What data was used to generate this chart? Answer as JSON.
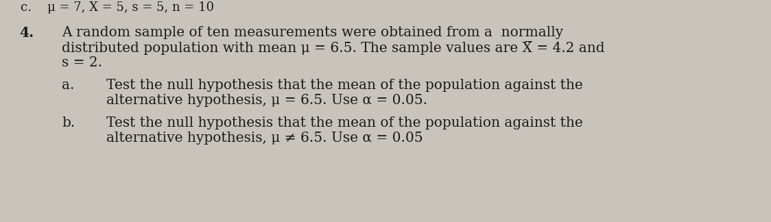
{
  "background_color": "#c8c4bc",
  "text_color": "#1a1a1a",
  "fig_width": 11.24,
  "fig_height": 3.24,
  "dpi": 100,
  "header": "c.    μ = 7, X = 5, s = 5, n = 10",
  "number": "4.",
  "main_line1": "A random sample of ten measurements were obtained from a  normally",
  "main_line2": "distributed population with mean μ = 6.5. The sample values are X̅ = 4.2 and",
  "main_line3": "s = 2.",
  "label_a": "a.",
  "text_a1": "Test the null hypothesis that the mean of the population against the",
  "text_a2": "alternative hypothesis, μ = 6.5. Use α = 0.05.",
  "label_b": "b.",
  "text_b1": "Test the null hypothesis that the mean of the population against the",
  "text_b2": "alternative hypothesis, μ ≠ 6.5. Use α = 0.05"
}
